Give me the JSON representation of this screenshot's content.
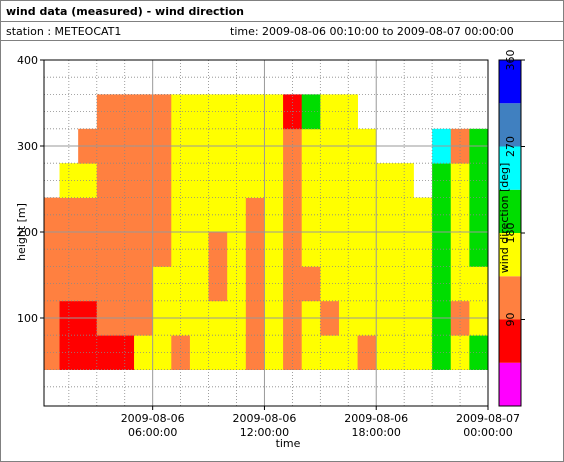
{
  "header": {
    "title": "wind data (measured) - wind direction",
    "station": "station : METEOCAT1",
    "time": "time: 2009-08-06 00:10:00 to 2009-08-07 00:00:00"
  },
  "chart_data": {
    "type": "heatmap",
    "xlabel": "time",
    "ylabel": "height [m]",
    "zlabel": "wind direction [deg]",
    "xlim": [
      "2009-08-06T00:10:00",
      "2009-08-07T00:00:00"
    ],
    "xticks": [
      {
        "value": "2009-08-06T06:00:00",
        "label": "2009-08-06 06:00:00"
      },
      {
        "value": "2009-08-06T12:00:00",
        "label": "2009-08-06 12:00:00"
      },
      {
        "value": "2009-08-06T18:00:00",
        "label": "2009-08-06 18:00:00"
      },
      {
        "value": "2009-08-07T00:00:00",
        "label": "2009-08-07 00:00:00"
      }
    ],
    "xticks_minor": [
      "2009-08-06T01:30:00",
      "2009-08-06T03:00:00",
      "2009-08-06T04:30:00",
      "2009-08-06T07:30:00",
      "2009-08-06T09:00:00",
      "2009-08-06T10:30:00",
      "2009-08-06T13:30:00",
      "2009-08-06T15:00:00",
      "2009-08-06T16:30:00",
      "2009-08-06T19:30:00",
      "2009-08-06T21:00:00",
      "2009-08-06T22:30:00"
    ],
    "ylim": [
      0,
      400
    ],
    "yticks": [
      100,
      200,
      300,
      400
    ],
    "yticks_minor": [
      20,
      40,
      60,
      80,
      120,
      140,
      160,
      180,
      220,
      240,
      260,
      280,
      320,
      340,
      360,
      380
    ],
    "zlim": [
      0,
      360
    ],
    "zticks": [
      90,
      180,
      270,
      360
    ],
    "color_bounds": [
      0,
      45,
      90,
      135,
      180,
      225,
      270,
      315,
      360
    ],
    "colors": [
      "#ff00ff",
      "#ff0000",
      "#ff8040",
      "#ffff00",
      "#00dd00",
      "#00ffff",
      "#4080c0",
      "#0000ff"
    ],
    "x": [
      "2009-08-06T00:30:00",
      "2009-08-06T01:30:00",
      "2009-08-06T02:30:00",
      "2009-08-06T03:30:00",
      "2009-08-06T04:30:00",
      "2009-08-06T05:30:00",
      "2009-08-06T06:30:00",
      "2009-08-06T07:30:00",
      "2009-08-06T08:30:00",
      "2009-08-06T09:30:00",
      "2009-08-06T10:30:00",
      "2009-08-06T11:30:00",
      "2009-08-06T12:30:00",
      "2009-08-06T13:30:00",
      "2009-08-06T14:30:00",
      "2009-08-06T15:30:00",
      "2009-08-06T16:30:00",
      "2009-08-06T17:30:00",
      "2009-08-06T18:30:00",
      "2009-08-06T19:30:00",
      "2009-08-06T20:30:00",
      "2009-08-06T21:30:00",
      "2009-08-06T22:30:00",
      "2009-08-06T23:30:00"
    ],
    "y": [
      60,
      100,
      140,
      180,
      220,
      260,
      300,
      340
    ],
    "values": [
      [
        112,
        112,
        112,
        112,
        112,
        null,
        null,
        null
      ],
      [
        67,
        67,
        112,
        112,
        112,
        157,
        null,
        null
      ],
      [
        67,
        67,
        112,
        112,
        112,
        157,
        112,
        null
      ],
      [
        67,
        112,
        112,
        112,
        112,
        112,
        112,
        112
      ],
      [
        67,
        112,
        112,
        112,
        112,
        112,
        112,
        112
      ],
      [
        157,
        112,
        112,
        112,
        112,
        112,
        112,
        112
      ],
      [
        157,
        157,
        157,
        112,
        112,
        112,
        112,
        112
      ],
      [
        112,
        157,
        157,
        157,
        157,
        157,
        157,
        157
      ],
      [
        157,
        157,
        157,
        157,
        157,
        157,
        157,
        157
      ],
      [
        157,
        157,
        112,
        112,
        157,
        157,
        157,
        157
      ],
      [
        157,
        157,
        157,
        157,
        157,
        157,
        157,
        157
      ],
      [
        112,
        112,
        112,
        112,
        112,
        157,
        157,
        157
      ],
      [
        157,
        157,
        157,
        157,
        157,
        157,
        157,
        157
      ],
      [
        112,
        112,
        112,
        112,
        112,
        112,
        112,
        67
      ],
      [
        157,
        157,
        112,
        157,
        157,
        157,
        157,
        202
      ],
      [
        157,
        112,
        157,
        157,
        157,
        157,
        157,
        157
      ],
      [
        157,
        157,
        157,
        157,
        157,
        157,
        157,
        157
      ],
      [
        112,
        157,
        157,
        157,
        157,
        157,
        157,
        null
      ],
      [
        157,
        157,
        157,
        157,
        157,
        157,
        null,
        null
      ],
      [
        157,
        157,
        157,
        157,
        157,
        157,
        null,
        null
      ],
      [
        157,
        157,
        157,
        157,
        157,
        null,
        null,
        null
      ],
      [
        202,
        202,
        202,
        202,
        202,
        202,
        247,
        null
      ],
      [
        157,
        112,
        157,
        157,
        157,
        157,
        112,
        null
      ],
      [
        202,
        157,
        157,
        202,
        202,
        202,
        202,
        null
      ]
    ]
  }
}
